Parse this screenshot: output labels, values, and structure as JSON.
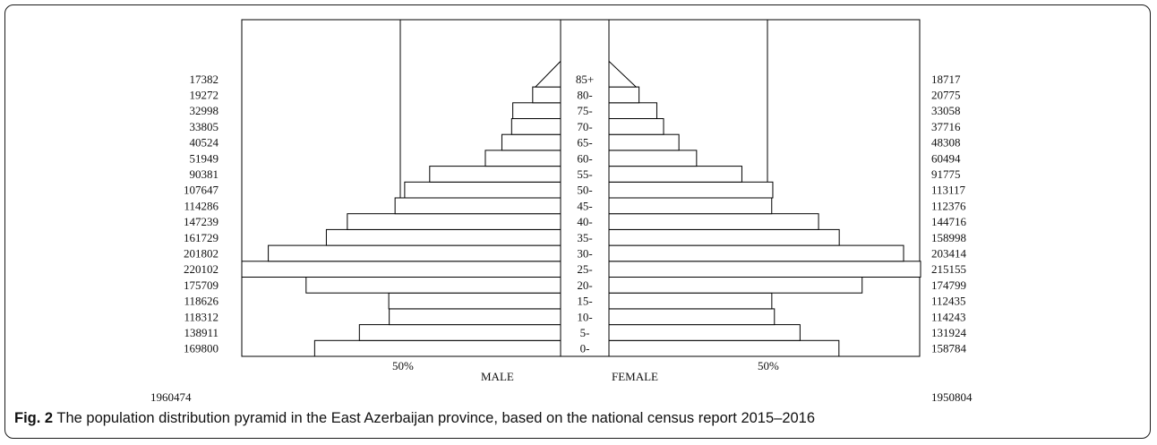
{
  "caption": {
    "label": "Fig. 2",
    "text": "The population distribution pyramid in the East Azerbaijan province, based on the national census report 2015–2016"
  },
  "chart_data": {
    "type": "bar",
    "orientation": "horizontal",
    "subtype": "population-pyramid",
    "categories": [
      "0-",
      "5-",
      "10-",
      "15-",
      "20-",
      "25-",
      "30-",
      "35-",
      "40-",
      "45-",
      "50-",
      "55-",
      "60-",
      "65-",
      "70-",
      "75-",
      "80-",
      "85+"
    ],
    "series": [
      {
        "name": "MALE",
        "side": "left",
        "values": [
          169800,
          138911,
          118312,
          118626,
          175709,
          220102,
          201802,
          161729,
          147239,
          114286,
          107647,
          90381,
          51949,
          40524,
          33805,
          32998,
          19272,
          17382
        ],
        "total": "1960474"
      },
      {
        "name": "FEMALE",
        "side": "right",
        "values": [
          158784,
          131924,
          114243,
          112435,
          174799,
          215155,
          203414,
          158998,
          144716,
          112376,
          113117,
          91775,
          60494,
          48308,
          37716,
          33058,
          20775,
          18717
        ],
        "total": "1950804"
      }
    ],
    "reference_lines": [
      {
        "label": "50%",
        "side": "left"
      },
      {
        "label": "50%",
        "side": "right"
      }
    ],
    "xlabels": [
      "MALE",
      "FEMALE"
    ],
    "colors": {
      "bar_fill": "#ffffff",
      "bar_stroke": "#000000"
    }
  }
}
